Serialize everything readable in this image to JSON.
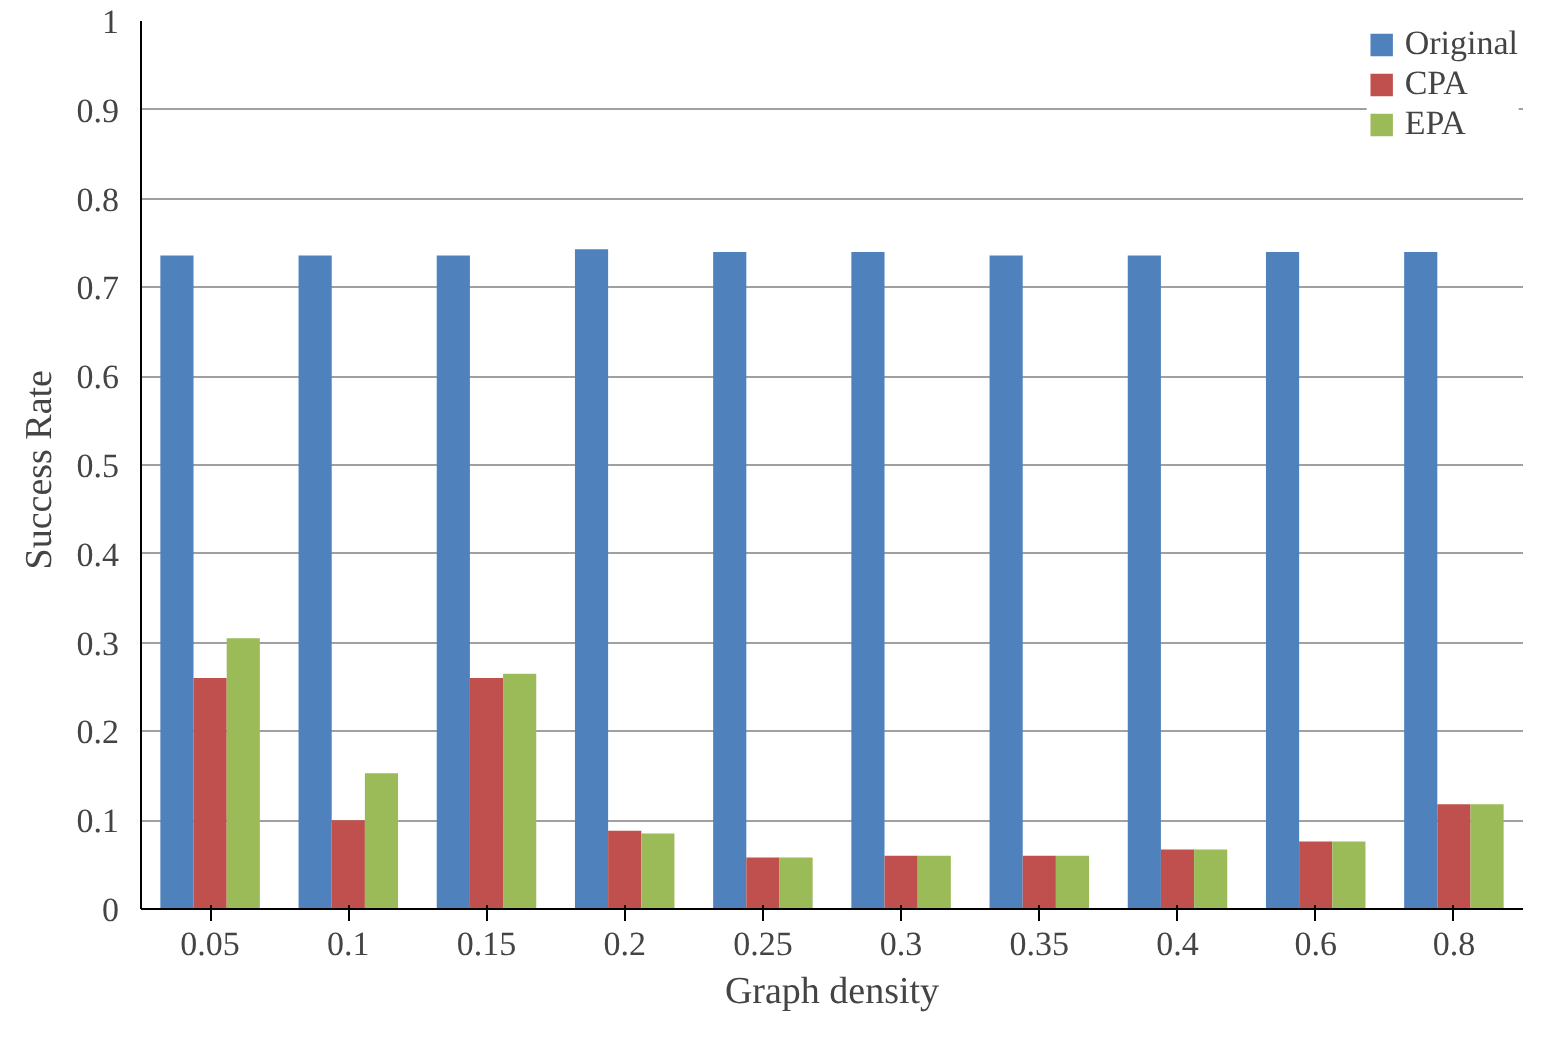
{
  "chart_data": {
    "type": "bar",
    "xlabel": "Graph density",
    "ylabel": "Success  Rate",
    "categories": [
      "0.05",
      "0.1",
      "0.15",
      "0.2",
      "0.25",
      "0.3",
      "0.35",
      "0.4",
      "0.6",
      "0.8"
    ],
    "series": [
      {
        "name": "Original",
        "color": "#4f81bd",
        "values": [
          0.736,
          0.736,
          0.736,
          0.743,
          0.74,
          0.74,
          0.736,
          0.736,
          0.74,
          0.74
        ]
      },
      {
        "name": "CPA",
        "color": "#c0504d",
        "values": [
          0.26,
          0.1,
          0.26,
          0.088,
          0.058,
          0.06,
          0.06,
          0.067,
          0.076,
          0.118
        ]
      },
      {
        "name": "EPA",
        "color": "#9bbb59",
        "values": [
          0.305,
          0.153,
          0.265,
          0.085,
          0.058,
          0.06,
          0.06,
          0.067,
          0.076,
          0.118
        ]
      }
    ],
    "ylim": [
      0,
      1
    ],
    "yticks": [
      0,
      0.1,
      0.2,
      0.3,
      0.4,
      0.5,
      0.6,
      0.7,
      0.8,
      0.9,
      1
    ],
    "grid": "y",
    "legend": "top right"
  }
}
